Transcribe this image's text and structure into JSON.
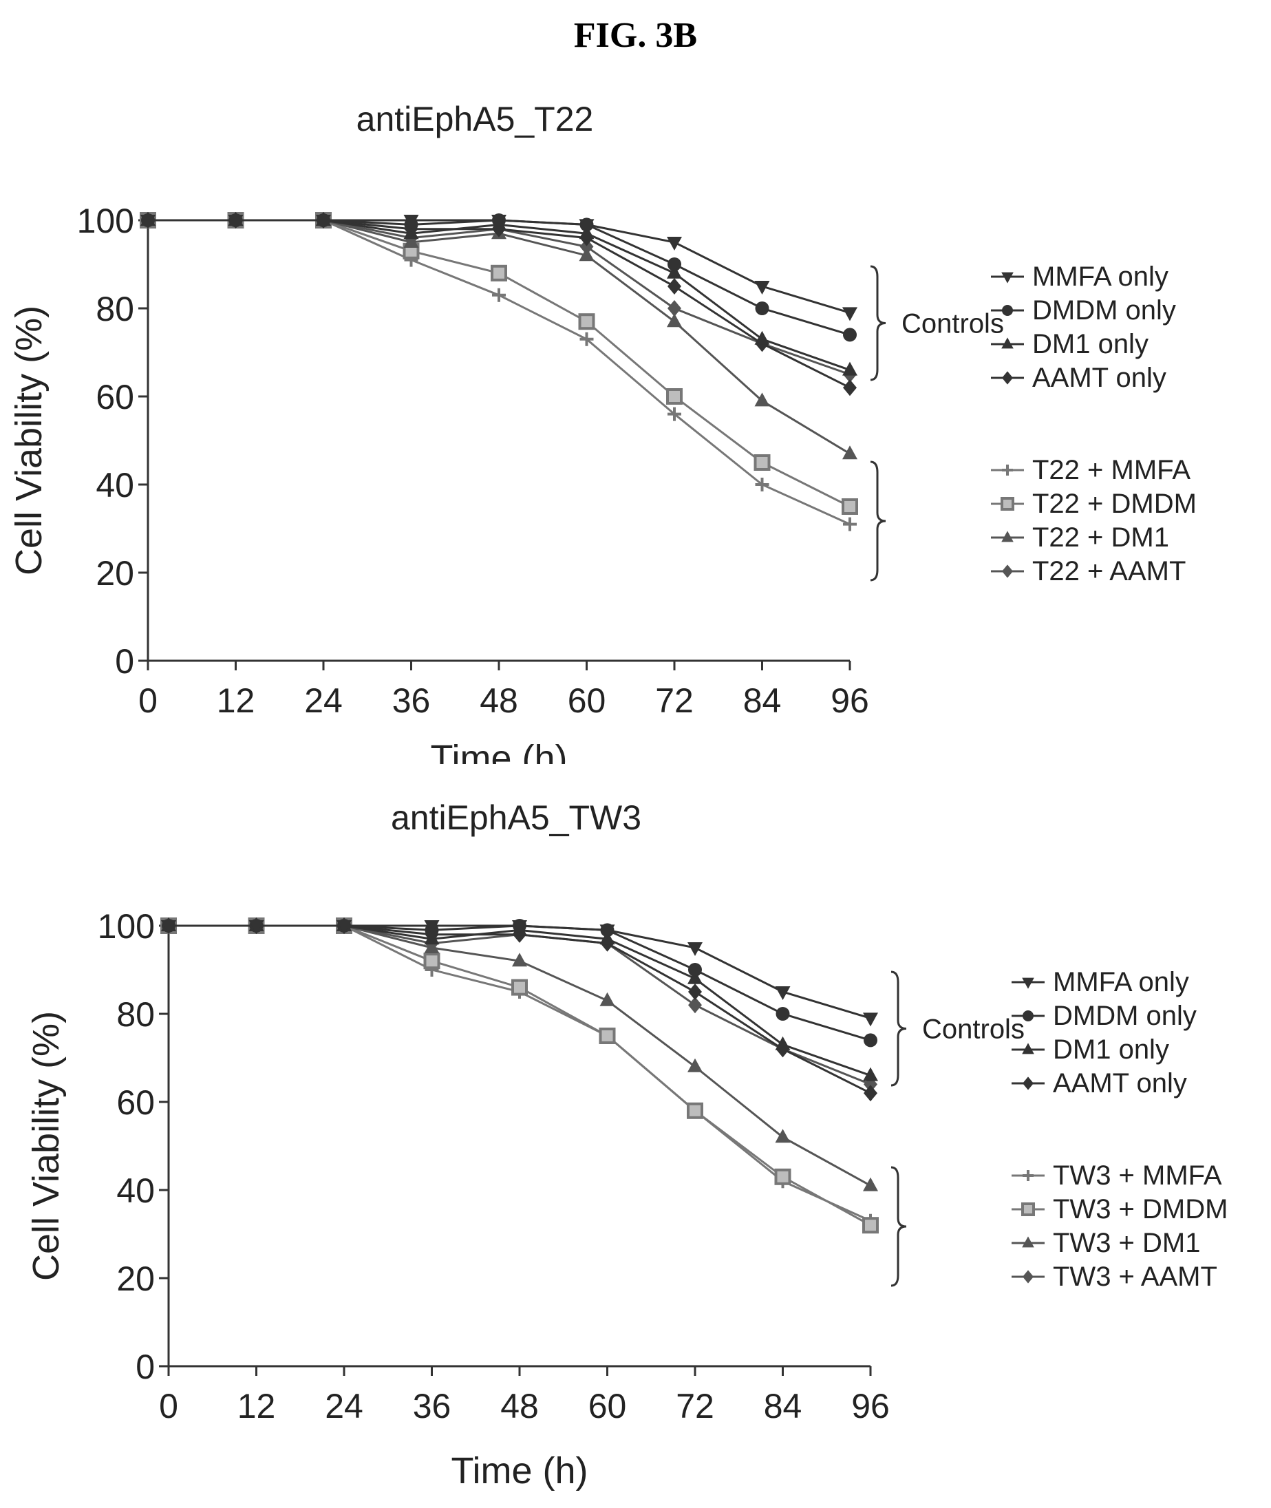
{
  "figure_label": "FIG. 3B",
  "chart_data": [
    {
      "type": "line",
      "title": "antiEphA5_T22",
      "xlabel": "Time (h)",
      "ylabel": "Cell Viability (%)",
      "x": [
        0,
        12,
        24,
        36,
        48,
        60,
        72,
        84,
        96
      ],
      "xticks": [
        "0",
        "12",
        "24",
        "36",
        "48",
        "60",
        "72",
        "84",
        "96"
      ],
      "yticks": [
        "0",
        "20",
        "40",
        "60",
        "80",
        "100"
      ],
      "xlim": [
        0,
        96
      ],
      "ylim": [
        0,
        100
      ],
      "grid": false,
      "legend_position": "right",
      "groups": [
        {
          "label": "Controls",
          "series_indices": [
            0,
            1,
            2,
            3
          ]
        },
        {
          "label": "",
          "series_indices": [
            4,
            5,
            6,
            7
          ]
        }
      ],
      "series": [
        {
          "name": "MMFA only",
          "marker": "triangle-down",
          "color": "#333333",
          "values": [
            100,
            100,
            100,
            100,
            100,
            99,
            95,
            85,
            79
          ]
        },
        {
          "name": "DMDM only",
          "marker": "circle",
          "color": "#333333",
          "values": [
            100,
            100,
            100,
            99,
            100,
            99,
            90,
            80,
            74
          ]
        },
        {
          "name": "DM1 only",
          "marker": "triangle-up",
          "color": "#333333",
          "values": [
            100,
            100,
            100,
            97,
            99,
            97,
            88,
            73,
            66
          ]
        },
        {
          "name": "AAMT only",
          "marker": "diamond",
          "color": "#333333",
          "values": [
            100,
            100,
            100,
            98,
            98,
            96,
            85,
            72,
            62
          ]
        },
        {
          "name": "T22 + MMFA",
          "marker": "cross",
          "color": "#777777",
          "values": [
            100,
            100,
            100,
            91,
            83,
            73,
            56,
            40,
            31
          ]
        },
        {
          "name": "T22 + DMDM",
          "marker": "square",
          "color": "#777777",
          "values": [
            100,
            100,
            100,
            93,
            88,
            77,
            60,
            45,
            35
          ]
        },
        {
          "name": "T22 + DM1",
          "marker": "triangle-up",
          "color": "#555555",
          "values": [
            100,
            100,
            100,
            95,
            97,
            92,
            77,
            59,
            47
          ]
        },
        {
          "name": "T22 + AAMT",
          "marker": "diamond",
          "color": "#555555",
          "values": [
            100,
            100,
            100,
            96,
            98,
            94,
            80,
            72,
            65
          ]
        }
      ]
    },
    {
      "type": "line",
      "title": "antiEphA5_TW3",
      "xlabel": "Time (h)",
      "ylabel": "Cell Viability (%)",
      "x": [
        0,
        12,
        24,
        36,
        48,
        60,
        72,
        84,
        96
      ],
      "xticks": [
        "0",
        "12",
        "24",
        "36",
        "48",
        "60",
        "72",
        "84",
        "96"
      ],
      "yticks": [
        "0",
        "20",
        "40",
        "60",
        "80",
        "100"
      ],
      "xlim": [
        0,
        96
      ],
      "ylim": [
        0,
        100
      ],
      "grid": false,
      "legend_position": "right",
      "groups": [
        {
          "label": "Controls",
          "series_indices": [
            0,
            1,
            2,
            3
          ]
        },
        {
          "label": "",
          "series_indices": [
            4,
            5,
            6,
            7
          ]
        }
      ],
      "series": [
        {
          "name": "MMFA only",
          "marker": "triangle-down",
          "color": "#333333",
          "values": [
            100,
            100,
            100,
            100,
            100,
            99,
            95,
            85,
            79
          ]
        },
        {
          "name": "DMDM only",
          "marker": "circle",
          "color": "#333333",
          "values": [
            100,
            100,
            100,
            99,
            100,
            99,
            90,
            80,
            74
          ]
        },
        {
          "name": "DM1 only",
          "marker": "triangle-up",
          "color": "#333333",
          "values": [
            100,
            100,
            100,
            97,
            99,
            97,
            88,
            73,
            66
          ]
        },
        {
          "name": "AAMT only",
          "marker": "diamond",
          "color": "#333333",
          "values": [
            100,
            100,
            100,
            98,
            98,
            96,
            85,
            72,
            62
          ]
        },
        {
          "name": "TW3 + MMFA",
          "marker": "cross",
          "color": "#777777",
          "values": [
            100,
            100,
            100,
            90,
            85,
            75,
            58,
            42,
            33
          ]
        },
        {
          "name": "TW3 + DMDM",
          "marker": "square",
          "color": "#777777",
          "values": [
            100,
            100,
            100,
            92,
            86,
            75,
            58,
            43,
            32
          ]
        },
        {
          "name": "TW3 + DM1",
          "marker": "triangle-up",
          "color": "#555555",
          "values": [
            100,
            100,
            100,
            95,
            92,
            83,
            68,
            52,
            41
          ]
        },
        {
          "name": "TW3 + AAMT",
          "marker": "diamond",
          "color": "#555555",
          "values": [
            100,
            100,
            100,
            96,
            98,
            96,
            82,
            72,
            64
          ]
        }
      ]
    }
  ]
}
